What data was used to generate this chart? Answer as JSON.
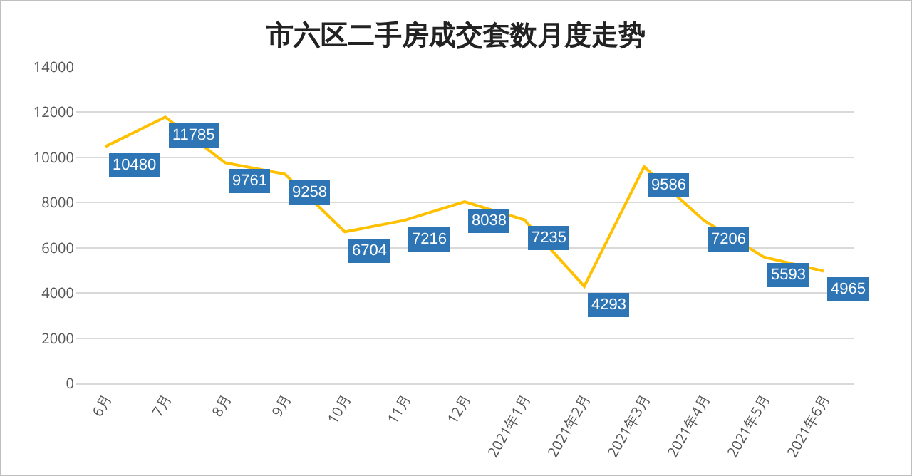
{
  "chart_data": {
    "type": "line",
    "title": "市六区二手房成交套数月度走势",
    "categories": [
      "6月",
      "7月",
      "8月",
      "9月",
      "10月",
      "11月",
      "12月",
      "2021年1月",
      "2021年2月",
      "2021年3月",
      "2021年4月",
      "2021年5月",
      "2021年6月"
    ],
    "series": [
      {
        "color": "#ffc000",
        "values": [
          10480,
          11785,
          9761,
          9258,
          6704,
          7216,
          8038,
          7235,
          4293,
          9586,
          7206,
          5593,
          4965
        ]
      }
    ],
    "ylim": [
      0,
      14000
    ],
    "yticks": [
      0,
      2000,
      4000,
      6000,
      8000,
      10000,
      12000,
      14000
    ],
    "grid": "y",
    "marker": "none",
    "line_style": "solid",
    "data_labels": true
  }
}
